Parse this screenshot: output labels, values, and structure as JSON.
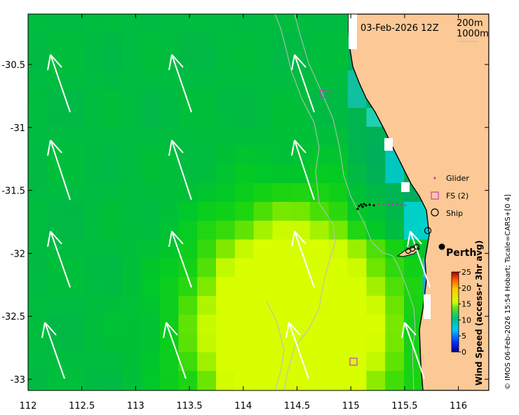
{
  "map": {
    "timestamp": "03-Feb-2026 12Z",
    "bathymetry_contours": [
      "200m",
      "1000m"
    ],
    "credit": "© IMOS 06-Feb-2026 15:54 Hobart; Tscale=CARS+[0 4]",
    "x_ticks": [
      "112",
      "112.5",
      "113",
      "113.5",
      "114",
      "114.5",
      "115",
      "115.5",
      "116"
    ],
    "y_ticks": [
      "-30.5",
      "-31",
      "-31.5",
      "-32",
      "-32.5",
      "-33"
    ],
    "city_label": "Perth",
    "legend": {
      "glider": "Glider",
      "fs": "FS (2)",
      "ship": "Ship"
    },
    "colorbar": {
      "title": "Wind Speed (access-r 3hr avg)",
      "ticks": [
        "0",
        "5",
        "10",
        "15",
        "20",
        "25"
      ]
    },
    "colors": {
      "land": "#fcc896",
      "coastline": "#000000",
      "contour": "#bdbdbd",
      "arrow": "#ffffff",
      "glider": "#c030c0",
      "fs_marker": "#c040c0"
    }
  }
}
